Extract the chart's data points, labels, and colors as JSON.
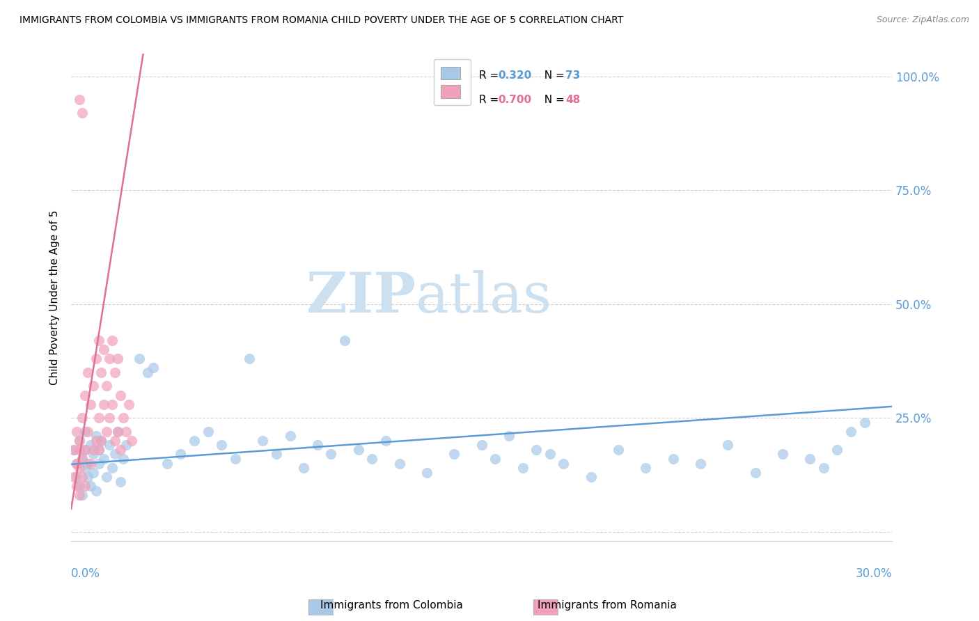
{
  "title": "IMMIGRANTS FROM COLOMBIA VS IMMIGRANTS FROM ROMANIA CHILD POVERTY UNDER THE AGE OF 5 CORRELATION CHART",
  "source": "Source: ZipAtlas.com",
  "ylabel": "Child Poverty Under the Age of 5",
  "xlim": [
    0.0,
    0.3
  ],
  "ylim": [
    -0.02,
    1.05
  ],
  "watermark_zip": "ZIP",
  "watermark_atlas": "atlas",
  "colombia_R": 0.32,
  "colombia_N": 73,
  "romania_R": 0.7,
  "romania_N": 48,
  "colombia_color": "#a8c8e8",
  "romania_color": "#f0a0b8",
  "colombia_line_color": "#5b9bd5",
  "romania_line_color": "#e07090",
  "yticks": [
    0.0,
    0.25,
    0.5,
    0.75,
    1.0
  ],
  "ytick_labels_right": [
    "",
    "25.0%",
    "50.0%",
    "75.0%",
    "100.0%"
  ],
  "background_color": "#ffffff",
  "grid_color": "#d0d0d0",
  "colombia_x": [
    0.001,
    0.002,
    0.002,
    0.003,
    0.003,
    0.004,
    0.004,
    0.005,
    0.005,
    0.005,
    0.006,
    0.006,
    0.007,
    0.007,
    0.008,
    0.008,
    0.009,
    0.009,
    0.01,
    0.01,
    0.011,
    0.012,
    0.013,
    0.014,
    0.015,
    0.016,
    0.017,
    0.018,
    0.019,
    0.02,
    0.025,
    0.028,
    0.03,
    0.035,
    0.04,
    0.045,
    0.05,
    0.055,
    0.06,
    0.065,
    0.07,
    0.075,
    0.08,
    0.085,
    0.09,
    0.095,
    0.1,
    0.105,
    0.11,
    0.115,
    0.12,
    0.13,
    0.14,
    0.15,
    0.155,
    0.16,
    0.165,
    0.17,
    0.175,
    0.18,
    0.19,
    0.2,
    0.21,
    0.22,
    0.23,
    0.24,
    0.25,
    0.26,
    0.27,
    0.275,
    0.28,
    0.285,
    0.29
  ],
  "colombia_y": [
    0.18,
    0.15,
    0.12,
    0.2,
    0.1,
    0.16,
    0.08,
    0.22,
    0.14,
    0.18,
    0.15,
    0.12,
    0.19,
    0.1,
    0.17,
    0.13,
    0.21,
    0.09,
    0.18,
    0.15,
    0.2,
    0.16,
    0.12,
    0.19,
    0.14,
    0.17,
    0.22,
    0.11,
    0.16,
    0.19,
    0.38,
    0.35,
    0.36,
    0.15,
    0.17,
    0.2,
    0.22,
    0.19,
    0.16,
    0.38,
    0.2,
    0.17,
    0.21,
    0.14,
    0.19,
    0.17,
    0.42,
    0.18,
    0.16,
    0.2,
    0.15,
    0.13,
    0.17,
    0.19,
    0.16,
    0.21,
    0.14,
    0.18,
    0.17,
    0.15,
    0.12,
    0.18,
    0.14,
    0.16,
    0.15,
    0.19,
    0.13,
    0.17,
    0.16,
    0.14,
    0.18,
    0.22,
    0.24
  ],
  "romania_x": [
    0.001,
    0.001,
    0.002,
    0.002,
    0.002,
    0.003,
    0.003,
    0.003,
    0.003,
    0.004,
    0.004,
    0.004,
    0.005,
    0.005,
    0.005,
    0.006,
    0.006,
    0.007,
    0.007,
    0.008,
    0.008,
    0.009,
    0.009,
    0.01,
    0.01,
    0.01,
    0.011,
    0.011,
    0.012,
    0.012,
    0.013,
    0.013,
    0.014,
    0.014,
    0.015,
    0.015,
    0.016,
    0.016,
    0.017,
    0.017,
    0.018,
    0.018,
    0.019,
    0.02,
    0.021,
    0.022,
    0.003,
    0.004
  ],
  "romania_y": [
    0.12,
    0.18,
    0.15,
    0.22,
    0.1,
    0.08,
    0.14,
    0.2,
    0.18,
    0.16,
    0.25,
    0.12,
    0.3,
    0.18,
    0.1,
    0.35,
    0.22,
    0.28,
    0.15,
    0.32,
    0.18,
    0.38,
    0.2,
    0.42,
    0.25,
    0.18,
    0.35,
    0.2,
    0.4,
    0.28,
    0.32,
    0.22,
    0.38,
    0.25,
    0.42,
    0.28,
    0.35,
    0.2,
    0.38,
    0.22,
    0.3,
    0.18,
    0.25,
    0.22,
    0.28,
    0.2,
    0.95,
    0.92
  ],
  "colombia_trend": [
    0.155,
    0.285
  ],
  "romania_trend_x": [
    0.0,
    0.3
  ],
  "colombia_trend_x": [
    0.0,
    0.3
  ]
}
